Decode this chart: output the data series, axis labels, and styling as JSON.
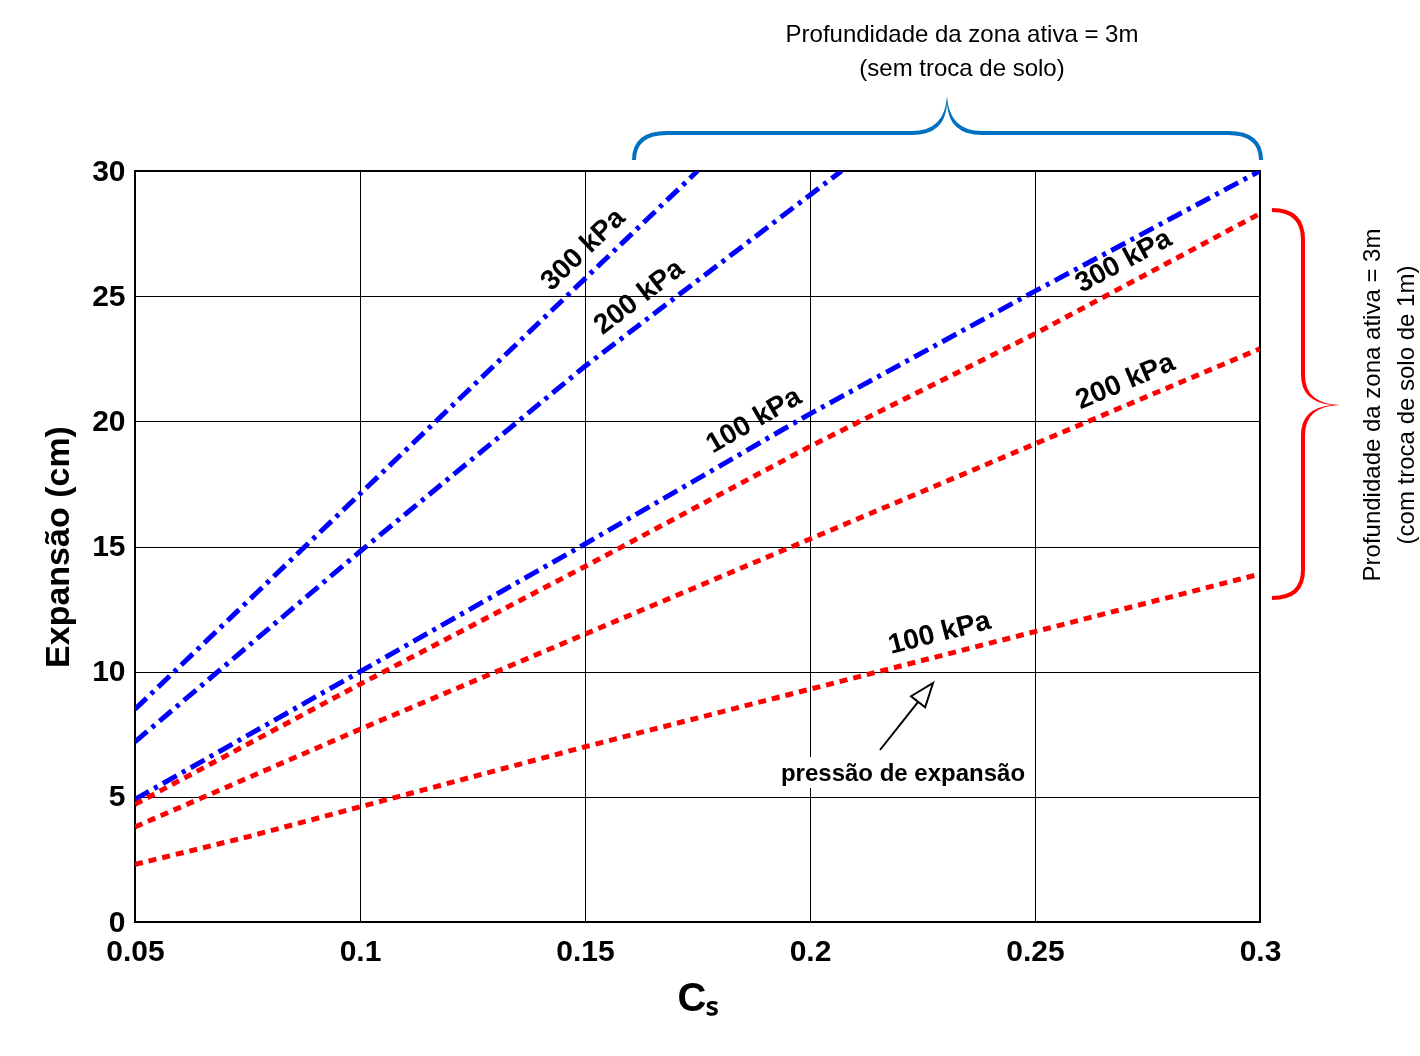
{
  "chart_data": {
    "type": "line",
    "xlabel": "Cₛ",
    "ylabel": "Expansão (cm)",
    "xlim": [
      0.05,
      0.3
    ],
    "xticks": [
      0.05,
      0.1,
      0.15,
      0.2,
      0.25,
      0.3
    ],
    "ylim": [
      0,
      30
    ],
    "yticks": [
      0,
      5,
      10,
      15,
      20,
      25,
      30
    ],
    "grid": true,
    "series": [
      {
        "name": "300 kPa",
        "color": "#0000ff",
        "line_style": "dashed",
        "x": [
          0.05,
          0.1,
          0.15,
          0.175
        ],
        "values": [
          8.5,
          17.1,
          25.7,
          30
        ]
      },
      {
        "name": "200 kPa",
        "color": "#0000ff",
        "line_style": "dashed",
        "x": [
          0.05,
          0.1,
          0.15,
          0.207
        ],
        "values": [
          7.2,
          14.8,
          22.2,
          30
        ]
      },
      {
        "name": "100 kPa",
        "color": "#0000ff",
        "line_style": "dashed",
        "x": [
          0.05,
          0.1,
          0.15,
          0.2,
          0.25,
          0.3
        ],
        "values": [
          4.9,
          10,
          15.1,
          20.3,
          25.2,
          30
        ]
      },
      {
        "name": "300 kPa",
        "color": "#ff0000",
        "line_style": "dotted",
        "x": [
          0.05,
          0.1,
          0.15,
          0.2,
          0.25,
          0.3
        ],
        "values": [
          4.7,
          9.5,
          14.2,
          19,
          23.5,
          28.3
        ]
      },
      {
        "name": "200 kPa",
        "color": "#ff0000",
        "line_style": "dotted",
        "x": [
          0.05,
          0.1,
          0.15,
          0.2,
          0.25,
          0.3
        ],
        "values": [
          3.8,
          7.7,
          11.5,
          15.3,
          19.1,
          22.9
        ]
      },
      {
        "name": "100 kPa",
        "color": "#ff0000",
        "line_style": "dotted",
        "x": [
          0.05,
          0.075,
          0.1,
          0.15,
          0.2,
          0.25,
          0.3
        ],
        "values": [
          2.3,
          3.4,
          4.6,
          7,
          9.3,
          11.6,
          13.9
        ]
      }
    ],
    "annotations": [
      "Profundidade da zona ativa = 3m\n(sem troca de solo)",
      "Profundidade da zona ativa = 3m\n(com troca de solo de 1m)",
      "pressão de expansão"
    ]
  }
}
